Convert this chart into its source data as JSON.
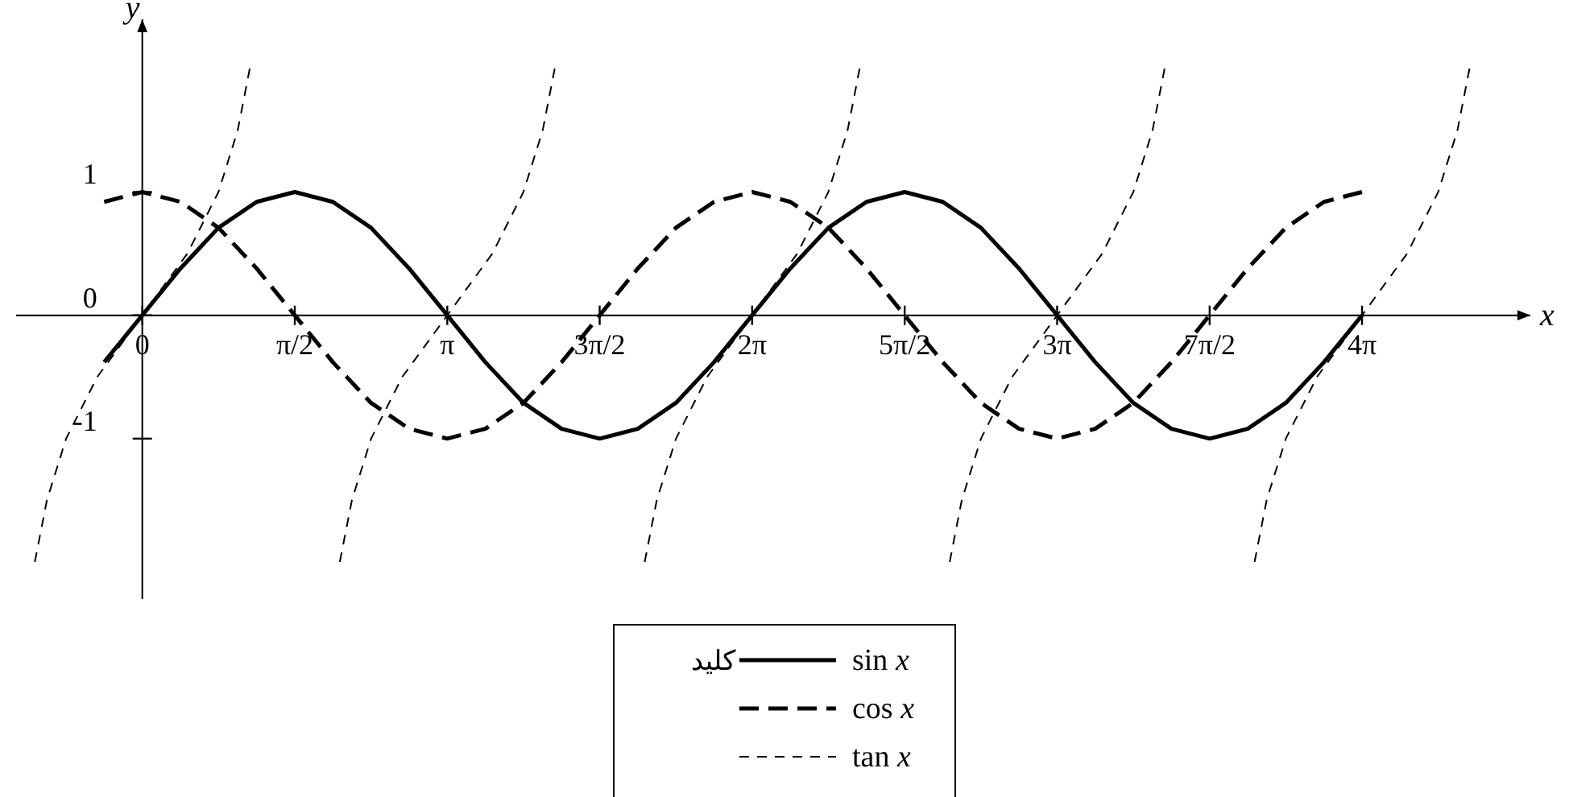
{
  "chart_data": {
    "type": "line",
    "xlabel": "x",
    "ylabel": "y",
    "legend_title": "کلید",
    "x": [
      -0.393,
      0,
      0.393,
      0.785,
      1.178,
      1.571,
      1.963,
      2.356,
      2.749,
      3.142,
      3.534,
      3.927,
      4.32,
      4.712,
      5.105,
      5.498,
      5.89,
      6.283,
      6.676,
      7.069,
      7.461,
      7.854,
      8.247,
      8.639,
      9.032,
      9.425,
      9.817,
      10.21,
      10.603,
      10.996,
      11.388,
      11.781,
      12.174,
      12.566
    ],
    "series": [
      {
        "name": "sin *x*",
        "color": "#000000",
        "line_style": "solid",
        "values": [
          -0.38,
          0,
          0.38,
          0.71,
          0.92,
          1,
          0.92,
          0.71,
          0.38,
          0,
          -0.38,
          -0.71,
          -0.92,
          -1,
          -0.92,
          -0.71,
          -0.38,
          0,
          0.38,
          0.71,
          0.92,
          1,
          0.92,
          0.71,
          0.38,
          0,
          -0.38,
          -0.71,
          -0.92,
          -1,
          -0.92,
          -0.71,
          -0.38,
          0
        ]
      },
      {
        "name": "cos *x*",
        "color": "#000000",
        "line_style": "dashed",
        "values": [
          0.92,
          1,
          0.92,
          0.71,
          0.38,
          0,
          -0.38,
          -0.71,
          -0.92,
          -1,
          -0.92,
          -0.71,
          -0.38,
          0,
          0.38,
          0.71,
          0.92,
          1,
          0.92,
          0.71,
          0.38,
          0,
          -0.38,
          -0.71,
          -0.92,
          -1,
          -0.92,
          -0.71,
          -0.38,
          0,
          0.38,
          0.71,
          0.92,
          1
        ]
      },
      {
        "name": "tan *x*",
        "color": "#000000",
        "line_style": "dotted",
        "x": [
          -1.107,
          -0.983,
          -0.785,
          -0.464,
          0,
          0.464,
          0.785,
          0.983,
          1.107
        ],
        "values": [
          -2,
          -1.5,
          -1,
          -0.5,
          0,
          0.5,
          1,
          1.5,
          2
        ]
      },
      {
        "color": "#000000",
        "line_style": "dotted",
        "x": [
          2.035,
          2.159,
          2.357,
          2.678,
          3.142,
          3.606,
          3.927,
          4.125,
          4.249
        ],
        "values": [
          -2,
          -1.5,
          -1,
          -0.5,
          0,
          0.5,
          1,
          1.5,
          2
        ]
      },
      {
        "color": "#000000",
        "line_style": "dotted",
        "x": [
          5.176,
          5.3,
          5.498,
          5.819,
          6.283,
          6.747,
          7.068,
          7.266,
          7.39
        ],
        "values": [
          -2,
          -1.5,
          -1,
          -0.5,
          0,
          0.5,
          1,
          1.5,
          2
        ]
      },
      {
        "color": "#000000",
        "line_style": "dotted",
        "x": [
          8.318,
          8.442,
          8.64,
          8.961,
          9.425,
          9.889,
          10.21,
          10.408,
          10.532
        ],
        "values": [
          -2,
          -1.5,
          -1,
          -0.5,
          0,
          0.5,
          1,
          1.5,
          2
        ]
      },
      {
        "color": "#000000",
        "line_style": "dotted",
        "x": [
          11.459,
          11.583,
          11.781,
          12.102,
          12.566,
          13.03,
          13.351,
          13.549,
          13.673
        ],
        "values": [
          -2,
          -1.5,
          -1,
          -0.5,
          0,
          0.5,
          1,
          1.5,
          2
        ]
      }
    ],
    "xlim": [
      -1.3,
      14.3
    ],
    "ylim": [
      -2.3,
      2.4
    ],
    "xticks": [
      0,
      {
        "value": 1.571,
        "label": "π/2"
      },
      {
        "value": 3.142,
        "label": "π"
      },
      {
        "value": 4.712,
        "label": "3π/2"
      },
      {
        "value": 6.283,
        "label": "2π"
      },
      {
        "value": 7.854,
        "label": "5π/2"
      },
      {
        "value": 9.425,
        "label": "3π"
      },
      {
        "value": 10.996,
        "label": "7π/2"
      },
      {
        "value": 12.566,
        "label": "4π"
      }
    ],
    "yticks": [
      -1,
      0,
      1
    ],
    "grid": false,
    "legend": "bottom",
    "marker": "none"
  }
}
